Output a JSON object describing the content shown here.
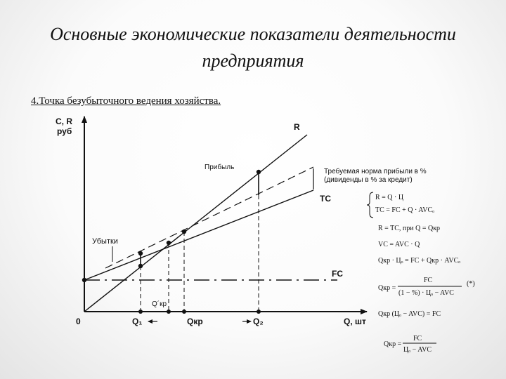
{
  "header": {
    "title_line1": "Основные экономические показатели деятельности",
    "title_line2": "предприятия",
    "subheading": "4.Точка безубыточного ведения хозяйства."
  },
  "axes": {
    "y_label_line1": "C, R",
    "y_label_line2": "руб",
    "x_label": "Q, шт",
    "origin": "0"
  },
  "curves": {
    "R": "R",
    "TC": "TC",
    "FC": "FC"
  },
  "annotations": {
    "profit": "Прибыль",
    "losses": "Убытки",
    "required_line1": "Требуемая норма прибыли в %",
    "required_line2": "(дивиденды в % за кредит)"
  },
  "ticks": {
    "q1": "Q₁",
    "qkr": "Qкр",
    "q2": "Q₂",
    "qkr_prime": "Q´кр"
  },
  "formulas": {
    "f1": "R = Q · Ц",
    "f2": "TC = FC + Q · AVCₒ",
    "f3": "R = TC,  при Q = Qкр",
    "f4": "VC = AVC · Q",
    "f5": "Qкр · Цₒ = FC + Qкр · AVCₒ",
    "f6_lhs": "Qкр =",
    "f6_num": "FC",
    "f6_den": "(1 − %) · Цₒ − AVC",
    "f6_tag": "(*)",
    "f7": "Qкр (Цₒ − AVC) = FC",
    "f8_lhs": "Qкр =",
    "f8_num": "FC",
    "f8_den": "Цₒ − AVC"
  },
  "colors": {
    "ink": "#111111",
    "background": "#ffffff"
  }
}
